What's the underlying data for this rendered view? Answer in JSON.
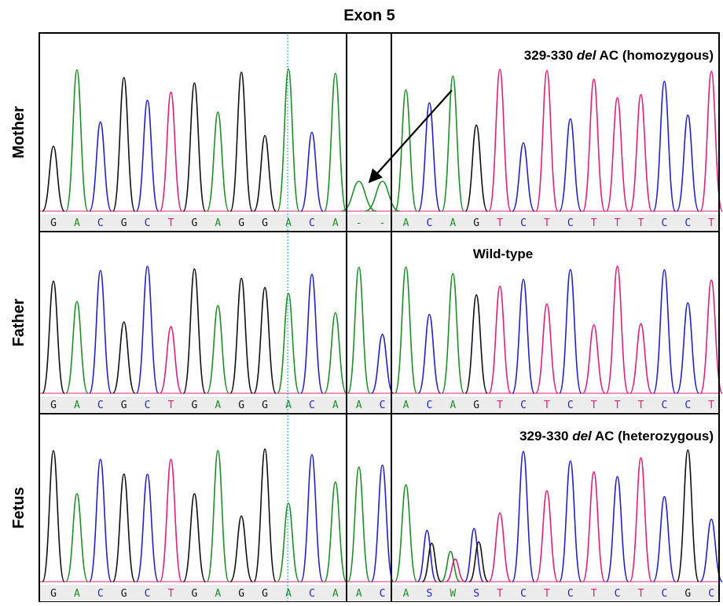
{
  "title": "Exon 5",
  "panels": [
    {
      "label": "Mother",
      "annotation": [
        "329-330 ",
        "del",
        " AC (homozygous)"
      ],
      "bases": [
        "G",
        "A",
        "C",
        "G",
        "C",
        "T",
        "G",
        "A",
        "G",
        "G",
        "A",
        "C",
        "A",
        "-",
        "-",
        "A",
        "C",
        "A",
        "G",
        "T",
        "C",
        "T",
        "C",
        "T",
        "T",
        "T",
        "C",
        "C",
        "T"
      ]
    },
    {
      "label": "Father",
      "annotation": [
        "Wild-type"
      ],
      "bases": [
        "G",
        "A",
        "C",
        "G",
        "C",
        "T",
        "G",
        "A",
        "G",
        "G",
        "A",
        "C",
        "A",
        "A",
        "C",
        "A",
        "C",
        "A",
        "G",
        "T",
        "C",
        "T",
        "C",
        "T",
        "T",
        "T",
        "C",
        "C",
        "T"
      ]
    },
    {
      "label": "Fetus",
      "annotation": [
        "329-330 ",
        "del",
        " AC (heterozygous)"
      ],
      "bases": [
        "G",
        "A",
        "C",
        "G",
        "C",
        "T",
        "G",
        "A",
        "G",
        "G",
        "A",
        "C",
        "A",
        "A",
        "C",
        "A",
        "S",
        "W",
        "S",
        "T",
        "C",
        "T",
        "C",
        "T",
        "C",
        "T",
        "C",
        "G",
        "C"
      ]
    }
  ]
}
